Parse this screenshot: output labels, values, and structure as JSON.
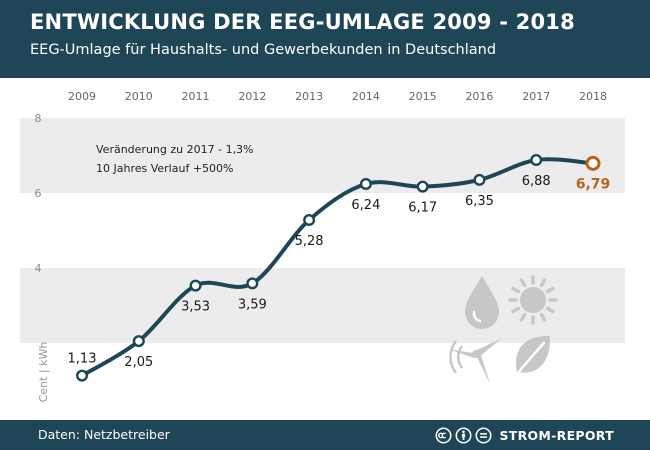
{
  "header": {
    "title": "ENTWICKLUNG DER EEG-UMLAGE 2009 - 2018",
    "subtitle": "EEG-Umlage für Haushalts- und Gewerbekunden in Deutschland"
  },
  "annotation": {
    "line1": "Veränderung zu 2017 - 1,3%",
    "line2": "10 Jahres Verlauf +500%"
  },
  "footer": {
    "source": "Daten: Netzbetreiber",
    "brand": "STROM-REPORT"
  },
  "colors": {
    "header_bg": "#1f4656",
    "line": "#1f4656",
    "highlight": "#b5651d",
    "icons": "#c7c7c7",
    "band": "#ececec"
  },
  "icons": [
    "water-drop-icon",
    "sun-icon",
    "wind-turbine-icon",
    "leaf-icon"
  ],
  "chart_data": {
    "type": "line",
    "categories": [
      "2009",
      "2010",
      "2011",
      "2012",
      "2013",
      "2014",
      "2015",
      "2016",
      "2017",
      "2018"
    ],
    "values": [
      1.13,
      2.05,
      3.53,
      3.59,
      5.28,
      6.24,
      6.17,
      6.35,
      6.88,
      6.79
    ],
    "value_labels": [
      "1,13",
      "2,05",
      "3,53",
      "3,59",
      "5,28",
      "6,24",
      "6,17",
      "6,35",
      "6,88",
      "6,79"
    ],
    "highlight_index": 9,
    "ylabel": "Cent | kWh",
    "ylim": [
      0,
      8
    ],
    "yticks": [
      4,
      6,
      8
    ],
    "legend": "none"
  }
}
